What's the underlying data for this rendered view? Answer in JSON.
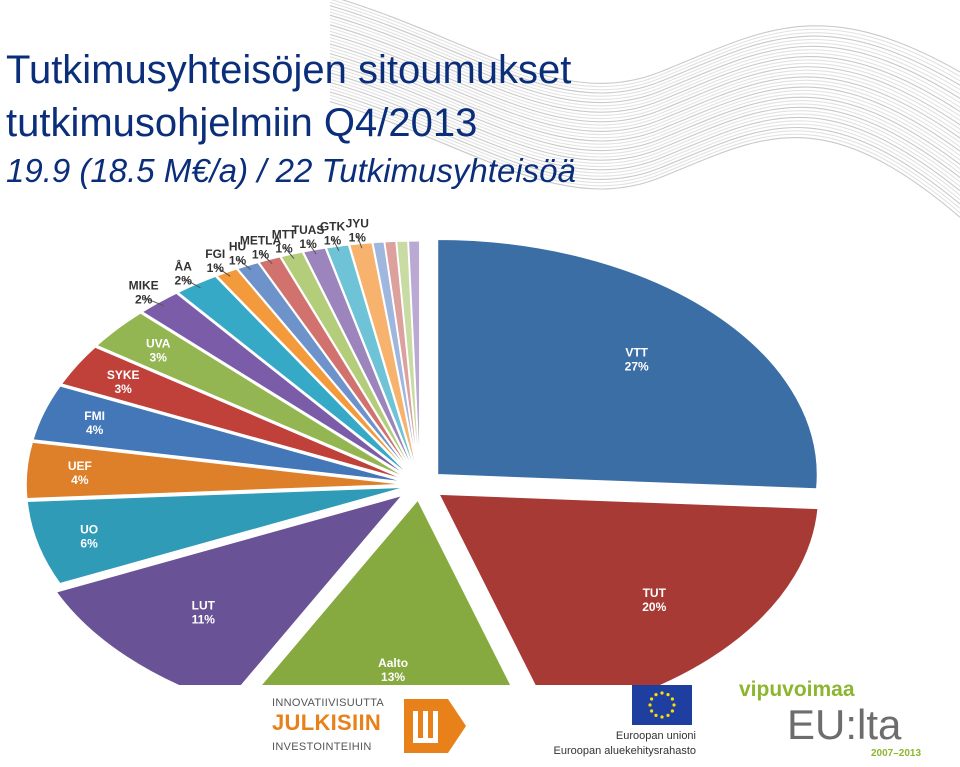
{
  "header": {
    "title_line1": "Tutkimusyhteisöjen sitoumukset",
    "title_line2": "tutkimusohjelmiin Q4/2013",
    "subtitle": "19.9 (18.5 M€/a) / 22 Tutkimusyhteisöä"
  },
  "chart_data": {
    "type": "pie",
    "title": "",
    "slices": [
      {
        "label": "VTT",
        "pct_label": "27%",
        "value": 27,
        "color": "#3a6ea5"
      },
      {
        "label": "TUT",
        "pct_label": "20%",
        "value": 20,
        "color": "#a83a36"
      },
      {
        "label": "Aalto",
        "pct_label": "13%",
        "value": 13,
        "color": "#86aa3f"
      },
      {
        "label": "LUT",
        "pct_label": "11%",
        "value": 11,
        "color": "#6a5296"
      },
      {
        "label": "UO",
        "pct_label": "6%",
        "value": 6,
        "color": "#2f9bb6"
      },
      {
        "label": "UEF",
        "pct_label": "4%",
        "value": 4,
        "color": "#de7f2a"
      },
      {
        "label": "FMI",
        "pct_label": "4%",
        "value": 4,
        "color": "#4377b8"
      },
      {
        "label": "SYKE",
        "pct_label": "3%",
        "value": 3,
        "color": "#c0403a"
      },
      {
        "label": "UVA",
        "pct_label": "3%",
        "value": 3,
        "color": "#93b652"
      },
      {
        "label": "MIKE",
        "pct_label": "2%",
        "value": 2,
        "color": "#7a5ca8"
      },
      {
        "label": "ÅA",
        "pct_label": "2%",
        "value": 2,
        "color": "#35a9c6"
      },
      {
        "label": "FGI",
        "pct_label": "1%",
        "value": 1,
        "color": "#f39a3c"
      },
      {
        "label": "HU",
        "pct_label": "1%",
        "value": 1,
        "color": "#6e93cb"
      },
      {
        "label": "METLA",
        "pct_label": "1%",
        "value": 1,
        "color": "#d1726e"
      },
      {
        "label": "MTT",
        "pct_label": "1%",
        "value": 1,
        "color": "#b3cd7b"
      },
      {
        "label": "TUAS",
        "pct_label": "1%",
        "value": 1,
        "color": "#9c85bd"
      },
      {
        "label": "GTK",
        "pct_label": "1%",
        "value": 1,
        "color": "#6ec3d6"
      },
      {
        "label": "JYU",
        "pct_label": "1%",
        "value": 1,
        "color": "#f7b26e"
      },
      {
        "label": "",
        "pct_label": "",
        "value": 0.5,
        "color": "#9fb6de"
      },
      {
        "label": "",
        "pct_label": "",
        "value": 0.5,
        "color": "#dca09d"
      },
      {
        "label": "",
        "pct_label": "",
        "value": 0.5,
        "color": "#c7dba2"
      },
      {
        "label": "",
        "pct_label": "",
        "value": 0.5,
        "color": "#b9a9d3"
      }
    ],
    "exploded": true,
    "legend": "none",
    "start": "top",
    "direction": "clockwise"
  },
  "logos": {
    "julkisiin": {
      "line1": "INNOVATIIVISUUTTA",
      "line2": "JULKISIIN",
      "line3": "INVESTOINTEIHIN"
    },
    "eu": {
      "line1": "Euroopan unioni",
      "line2": "Euroopan aluekehitysrahasto"
    },
    "vipuvoimaa": {
      "line1": "vipuvoimaa",
      "line2": "EU:lta",
      "line3": "2007–2013"
    }
  },
  "colors": {
    "title": "#0b2e7a",
    "orange": "#e8811a",
    "eu_blue": "#1f3fa0",
    "eu_star": "#ffdd00",
    "vip_green": "#8db62f"
  }
}
